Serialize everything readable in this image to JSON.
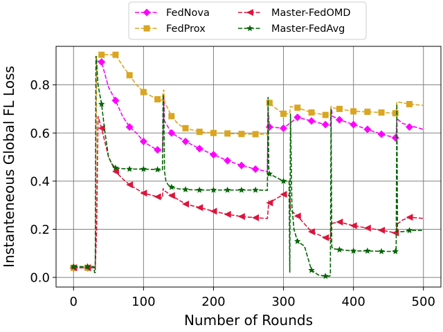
{
  "chart_data": {
    "type": "line",
    "title": "",
    "xlabel": "Number of Rounds",
    "ylabel": "Instanteneous Global FL Loss",
    "xlim": [
      -25,
      525
    ],
    "ylim": [
      -0.04,
      0.96
    ],
    "xticks": [
      0,
      100,
      200,
      300,
      400,
      500
    ],
    "yticks": [
      0.0,
      0.2,
      0.4,
      0.6,
      0.8
    ],
    "grid": true,
    "legend": {
      "position": "top-center",
      "columns": 2
    },
    "series": [
      {
        "name": "FedNova",
        "color": "#ff00ff",
        "marker": "diamond",
        "dash": "dashed",
        "x": [
          0,
          10,
          20,
          29,
          31,
          33,
          40,
          50,
          60,
          70,
          80,
          90,
          100,
          110,
          120,
          127,
          128,
          129,
          130,
          140,
          160,
          180,
          200,
          220,
          240,
          260,
          277,
          278,
          280,
          300,
          320,
          340,
          360,
          367,
          368,
          370,
          380,
          400,
          420,
          440,
          460,
          461,
          462,
          470,
          500
        ],
        "y": [
          0.04,
          0.04,
          0.04,
          0.04,
          0.04,
          0.9,
          0.895,
          0.79,
          0.735,
          0.67,
          0.625,
          0.6,
          0.565,
          0.545,
          0.53,
          0.525,
          0.6,
          0.75,
          0.65,
          0.6,
          0.565,
          0.535,
          0.51,
          0.485,
          0.465,
          0.45,
          0.44,
          0.7,
          0.625,
          0.62,
          0.665,
          0.65,
          0.635,
          0.63,
          0.71,
          0.67,
          0.655,
          0.635,
          0.615,
          0.595,
          0.58,
          0.58,
          0.66,
          0.64,
          0.615
        ],
        "markers_x": [
          0,
          20,
          40,
          60,
          80,
          100,
          120,
          140,
          160,
          180,
          200,
          220,
          240,
          260,
          280,
          300,
          320,
          340,
          360,
          380,
          400,
          420,
          440,
          460,
          480
        ],
        "markers_y": [
          0.04,
          0.04,
          0.895,
          0.735,
          0.625,
          0.565,
          0.53,
          0.6,
          0.565,
          0.535,
          0.51,
          0.485,
          0.465,
          0.45,
          0.625,
          0.62,
          0.665,
          0.65,
          0.635,
          0.655,
          0.635,
          0.615,
          0.595,
          0.58,
          0.625
        ]
      },
      {
        "name": "FedProx",
        "color": "#daa520",
        "marker": "square",
        "dash": "dashed",
        "x": [
          0,
          10,
          20,
          29,
          31,
          33,
          40,
          60,
          70,
          80,
          90,
          100,
          110,
          120,
          127,
          128,
          129,
          130,
          140,
          150,
          160,
          180,
          200,
          220,
          240,
          260,
          277,
          278,
          280,
          290,
          300,
          309,
          310,
          320,
          340,
          360,
          367,
          368,
          370,
          380,
          400,
          420,
          440,
          460,
          461,
          462,
          480,
          500
        ],
        "y": [
          0.04,
          0.04,
          0.04,
          0.04,
          0.04,
          0.92,
          0.925,
          0.925,
          0.88,
          0.84,
          0.8,
          0.77,
          0.755,
          0.74,
          0.735,
          0.77,
          0.78,
          0.73,
          0.67,
          0.635,
          0.62,
          0.605,
          0.6,
          0.598,
          0.596,
          0.595,
          0.595,
          0.74,
          0.725,
          0.7,
          0.68,
          0.68,
          0.71,
          0.705,
          0.685,
          0.675,
          0.675,
          0.71,
          0.705,
          0.7,
          0.69,
          0.688,
          0.685,
          0.682,
          0.682,
          0.73,
          0.72,
          0.715
        ],
        "markers_x": [
          0,
          20,
          40,
          60,
          80,
          100,
          120,
          140,
          160,
          180,
          200,
          220,
          240,
          260,
          280,
          300,
          320,
          340,
          360,
          380,
          400,
          420,
          440,
          460,
          480
        ],
        "markers_y": [
          0.04,
          0.04,
          0.925,
          0.925,
          0.84,
          0.77,
          0.74,
          0.67,
          0.62,
          0.605,
          0.6,
          0.598,
          0.596,
          0.595,
          0.725,
          0.68,
          0.705,
          0.685,
          0.675,
          0.7,
          0.69,
          0.688,
          0.685,
          0.682,
          0.72
        ]
      },
      {
        "name": "Master-FedOMD",
        "color": "#dc143c",
        "marker": "triangle-left",
        "dash": "dashed",
        "x": [
          0,
          10,
          20,
          29,
          31,
          33,
          35,
          40,
          45,
          50,
          60,
          70,
          80,
          100,
          120,
          127,
          128,
          129,
          130,
          140,
          160,
          180,
          200,
          220,
          240,
          260,
          277,
          278,
          279,
          280,
          300,
          309,
          310,
          320,
          340,
          360,
          367,
          368,
          370,
          380,
          400,
          420,
          440,
          460,
          461,
          462,
          470,
          480,
          500
        ],
        "y": [
          0.04,
          0.04,
          0.04,
          0.04,
          0.04,
          0.2,
          0.67,
          0.62,
          0.56,
          0.5,
          0.44,
          0.41,
          0.385,
          0.35,
          0.335,
          0.33,
          0.37,
          0.36,
          0.36,
          0.34,
          0.305,
          0.29,
          0.275,
          0.262,
          0.253,
          0.248,
          0.245,
          0.28,
          0.315,
          0.31,
          0.345,
          0.34,
          0.28,
          0.255,
          0.19,
          0.165,
          0.16,
          0.22,
          0.225,
          0.23,
          0.215,
          0.205,
          0.196,
          0.185,
          0.18,
          0.22,
          0.238,
          0.25,
          0.245
        ],
        "markers_x": [
          0,
          20,
          40,
          60,
          80,
          100,
          120,
          140,
          160,
          180,
          200,
          220,
          240,
          260,
          280,
          300,
          320,
          340,
          360,
          380,
          400,
          420,
          440,
          460,
          480
        ],
        "markers_y": [
          0.04,
          0.04,
          0.62,
          0.44,
          0.385,
          0.35,
          0.335,
          0.34,
          0.305,
          0.29,
          0.275,
          0.262,
          0.253,
          0.248,
          0.31,
          0.345,
          0.255,
          0.19,
          0.165,
          0.23,
          0.215,
          0.205,
          0.196,
          0.185,
          0.25
        ]
      },
      {
        "name": "Master-FedAvg",
        "color": "#006400",
        "marker": "star",
        "dash": "dashed",
        "x": [
          0,
          10,
          20,
          29,
          30,
          31,
          32,
          33,
          35,
          40,
          45,
          50,
          55,
          60,
          70,
          80,
          100,
          120,
          127,
          128,
          129,
          130,
          132,
          135,
          140,
          150,
          160,
          180,
          200,
          220,
          240,
          260,
          277,
          278,
          279,
          280,
          300,
          308,
          309,
          310,
          312,
          315,
          320,
          330,
          340,
          350,
          360,
          366,
          367,
          368,
          369,
          370,
          380,
          400,
          420,
          440,
          460,
          461,
          462,
          463,
          470,
          480,
          500
        ],
        "y": [
          0.045,
          0.045,
          0.045,
          0.045,
          0.02,
          0.02,
          0.92,
          0.89,
          0.8,
          0.72,
          0.6,
          0.5,
          0.47,
          0.455,
          0.452,
          0.45,
          0.45,
          0.448,
          0.445,
          0.76,
          0.7,
          0.44,
          0.4,
          0.385,
          0.375,
          0.368,
          0.365,
          0.363,
          0.363,
          0.363,
          0.363,
          0.363,
          0.362,
          0.75,
          0.45,
          0.43,
          0.4,
          0.4,
          0.02,
          0.68,
          0.3,
          0.2,
          0.15,
          0.13,
          0.03,
          0.01,
          0.005,
          0.005,
          0.01,
          0.7,
          0.13,
          0.12,
          0.115,
          0.11,
          0.11,
          0.108,
          0.108,
          0.105,
          0.72,
          0.19,
          0.19,
          0.195,
          0.195
        ],
        "markers_x": [
          0,
          20,
          40,
          60,
          80,
          100,
          120,
          140,
          160,
          180,
          200,
          220,
          240,
          260,
          280,
          300,
          320,
          340,
          360,
          380,
          400,
          420,
          440,
          460,
          480
        ],
        "markers_y": [
          0.045,
          0.045,
          0.72,
          0.455,
          0.45,
          0.45,
          0.448,
          0.375,
          0.365,
          0.363,
          0.363,
          0.363,
          0.363,
          0.363,
          0.43,
          0.4,
          0.15,
          0.03,
          0.005,
          0.115,
          0.11,
          0.11,
          0.108,
          0.108,
          0.195
        ]
      }
    ]
  }
}
